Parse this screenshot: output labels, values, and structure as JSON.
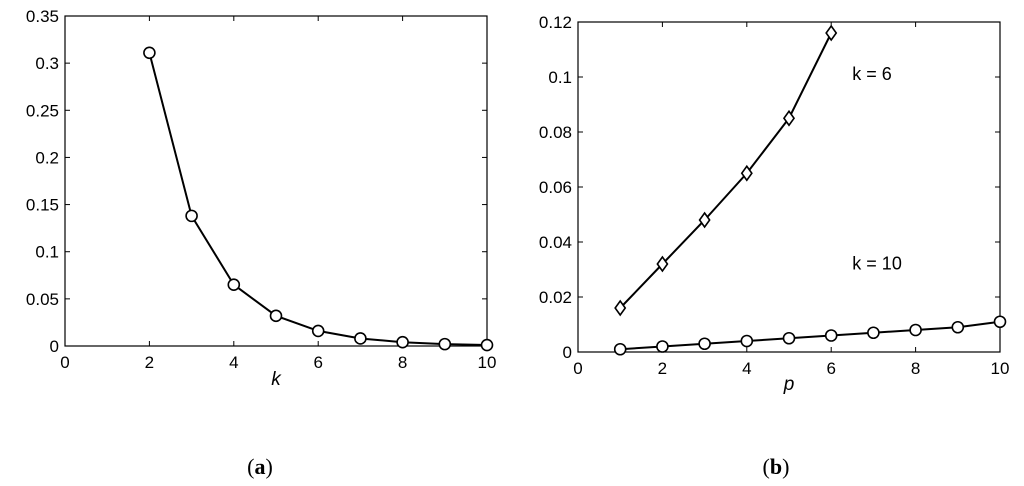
{
  "chart_data": [
    {
      "type": "line",
      "title": "",
      "caption_open": "(",
      "caption_letter": "a",
      "caption_close": ")",
      "xlabel": "k",
      "ylabel": "",
      "xlim": [
        0,
        10
      ],
      "ylim": [
        0,
        0.35
      ],
      "xticks": [
        0,
        2,
        4,
        6,
        8,
        10
      ],
      "xtick_labels": [
        "0",
        "2",
        "4",
        "6",
        "8",
        "10"
      ],
      "yticks": [
        0,
        0.05,
        0.1,
        0.15,
        0.2,
        0.25,
        0.3,
        0.35
      ],
      "ytick_labels": [
        "0",
        "0.05",
        "0.1",
        "0.15",
        "0.2",
        "0.25",
        "0.3",
        "0.35"
      ],
      "grid": false,
      "series": [
        {
          "marker": "circle",
          "x": [
            2,
            3,
            4,
            5,
            6,
            7,
            8,
            9,
            10
          ],
          "y": [
            0.311,
            0.138,
            0.065,
            0.032,
            0.016,
            0.008,
            0.004,
            0.002,
            0.001
          ]
        }
      ],
      "annotations": []
    },
    {
      "type": "line",
      "title": "",
      "caption_open": "(",
      "caption_letter": "b",
      "caption_close": ")",
      "xlabel": "p",
      "ylabel": "",
      "xlim": [
        0,
        10
      ],
      "ylim": [
        0,
        0.12
      ],
      "xticks": [
        0,
        2,
        4,
        6,
        8,
        10
      ],
      "xtick_labels": [
        "0",
        "2",
        "4",
        "6",
        "8",
        "10"
      ],
      "yticks": [
        0,
        0.02,
        0.04,
        0.06,
        0.08,
        0.1,
        0.12
      ],
      "ytick_labels": [
        "0",
        "0.02",
        "0.04",
        "0.06",
        "0.08",
        "0.1",
        "0.12"
      ],
      "grid": false,
      "series": [
        {
          "marker": "diamond",
          "x": [
            1,
            2,
            3,
            4,
            5,
            6
          ],
          "y": [
            0.016,
            0.032,
            0.048,
            0.065,
            0.085,
            0.116
          ]
        },
        {
          "marker": "circle",
          "x": [
            1,
            2,
            3,
            4,
            5,
            6,
            7,
            8,
            9,
            10
          ],
          "y": [
            0.001,
            0.002,
            0.003,
            0.004,
            0.005,
            0.006,
            0.007,
            0.008,
            0.009,
            0.011
          ]
        }
      ],
      "annotations": [
        {
          "text": "k = 6",
          "x": 6.5,
          "y": 0.099
        },
        {
          "text": "k = 10",
          "x": 6.5,
          "y": 0.03
        }
      ]
    }
  ]
}
